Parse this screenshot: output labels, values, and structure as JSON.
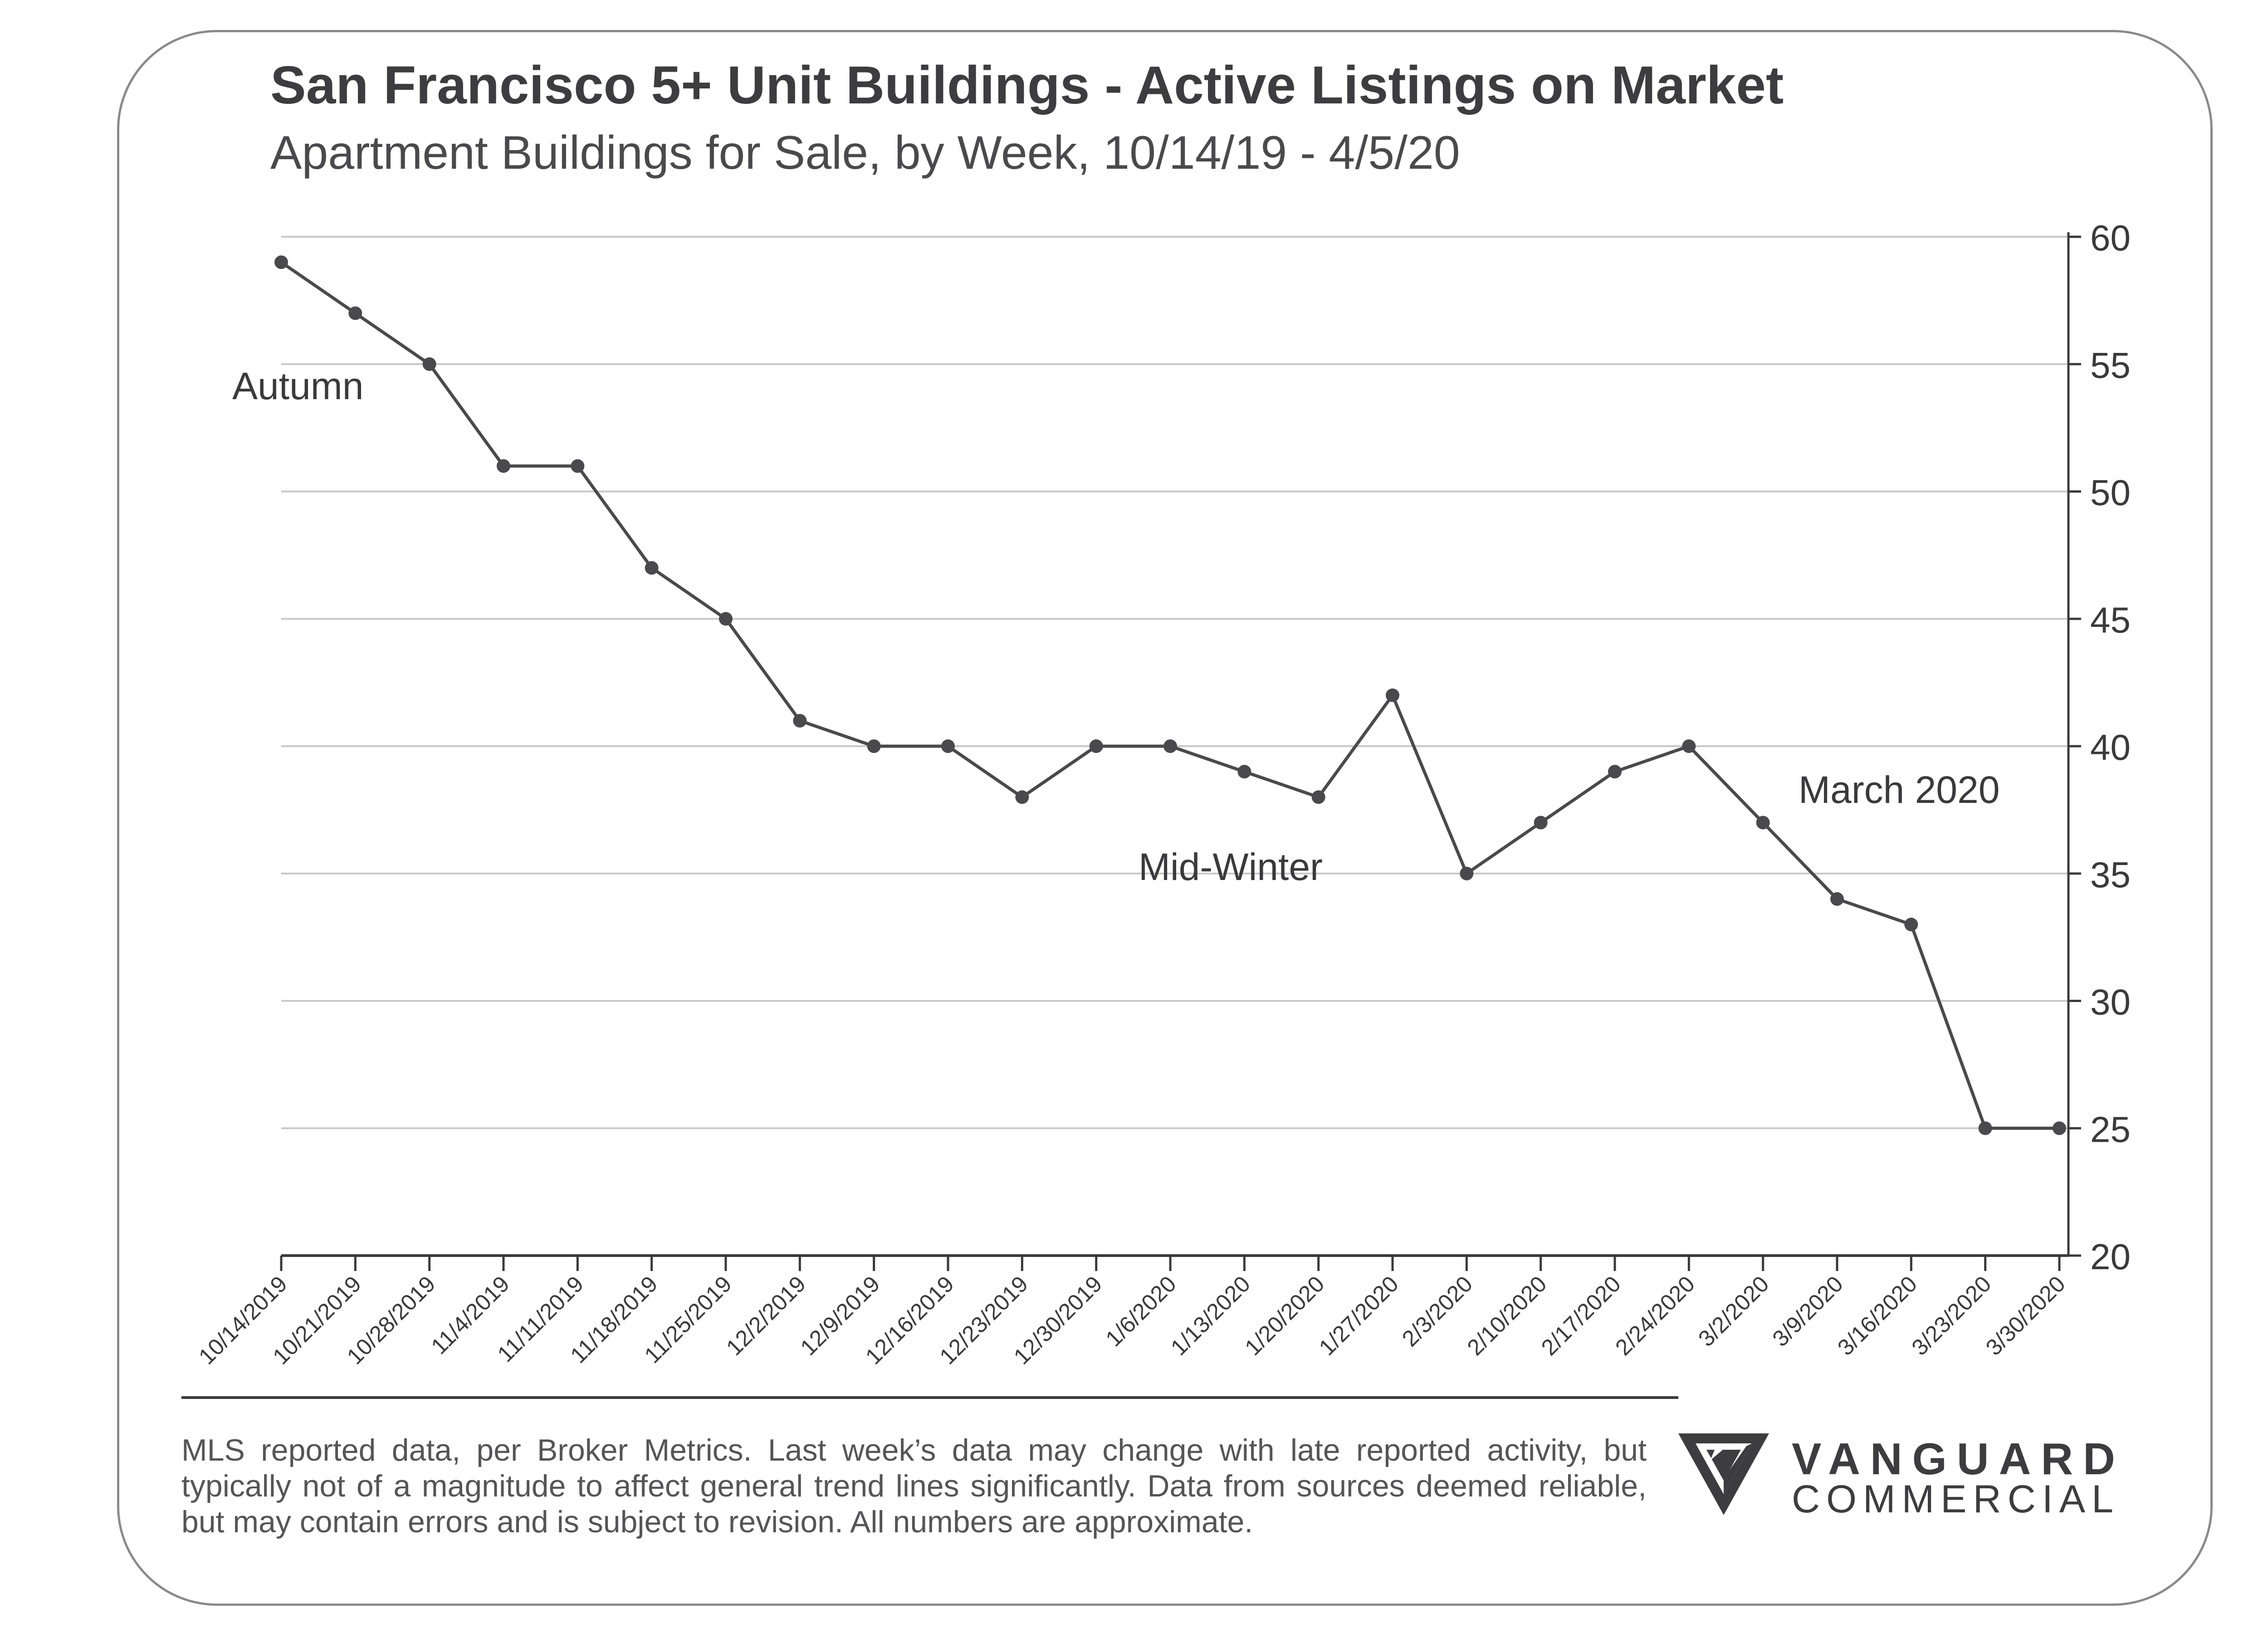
{
  "header": {
    "title": "San Francisco 5+ Unit Buildings - Active Listings on Market",
    "subtitle": "Apartment Buildings for Sale, by Week, 10/14/19 - 4/5/20"
  },
  "chart_data": {
    "type": "line",
    "title": "San Francisco 5+ Unit Buildings - Active Listings on Market",
    "subtitle": "Apartment Buildings for Sale, by Week, 10/14/19 - 4/5/20",
    "xlabel": "",
    "ylabel": "",
    "grid": true,
    "y_axis_side": "right",
    "ylim": [
      20,
      60
    ],
    "yticks": [
      20,
      25,
      30,
      35,
      40,
      45,
      50,
      55,
      60
    ],
    "categories": [
      "10/14/2019",
      "10/21/2019",
      "10/28/2019",
      "11/4/2019",
      "11/11/2019",
      "11/18/2019",
      "11/25/2019",
      "12/2/2019",
      "12/9/2019",
      "12/16/2019",
      "12/23/2019",
      "12/30/2019",
      "1/6/2020",
      "1/13/2020",
      "1/20/2020",
      "1/27/2020",
      "2/3/2020",
      "2/10/2020",
      "2/17/2020",
      "2/24/2020",
      "3/2/2020",
      "3/9/2020",
      "3/16/2020",
      "3/23/2020",
      "3/30/2020"
    ],
    "series": [
      {
        "name": "Active Listings",
        "color": "#4a4a4c",
        "values": [
          59,
          57,
          55,
          51,
          51,
          47,
          45,
          41,
          40,
          40,
          38,
          40,
          40,
          39,
          38,
          42,
          35,
          37,
          39,
          40,
          37,
          34,
          33,
          25,
          25
        ]
      }
    ],
    "annotations": [
      {
        "text": "Autumn",
        "near": "10/21/2019"
      },
      {
        "text": "Mid-Winter",
        "near": "1/13/2020"
      },
      {
        "text": "March 2020",
        "near": "3/16/2020"
      }
    ]
  },
  "footnote": "MLS reported data, per Broker Metrics. Last week’s data may change with late reported activity, but typically not of a magnitude to affect general trend lines significantly. Data from sources deemed reliable, but may contain errors and is subject to revision. All numbers are approximate.",
  "logo": {
    "line1": "VANGUARD",
    "line2": "COMMERCIAL"
  },
  "colors": {
    "line": "#4a4a4c",
    "grid": "#c8c8c8",
    "axis": "#3a3a3c",
    "text": "#3a3a3c"
  }
}
